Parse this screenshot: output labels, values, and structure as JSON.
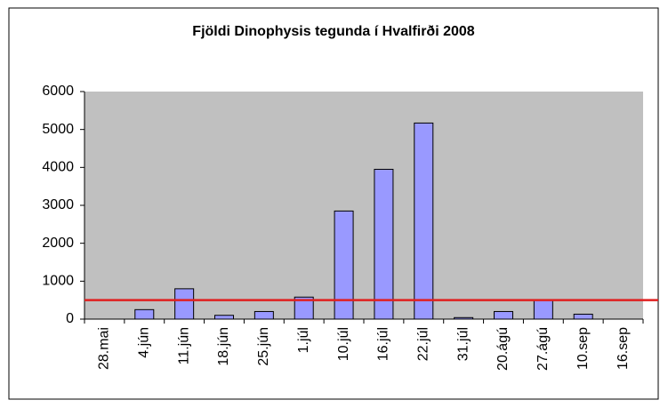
{
  "chart_data": {
    "type": "bar",
    "title": "Fjöldi Dinophysis tegunda í Hvalfirði 2008",
    "categories": [
      "28.mai",
      "4.jún",
      "11.jún",
      "18.jún",
      "25.jún",
      "1.júl",
      "10.júl",
      "16.júl",
      "22.júl",
      "31.júl",
      "20.ágú",
      "27.ágú",
      "10.sep",
      "16.sep"
    ],
    "values": [
      0,
      250,
      800,
      100,
      200,
      580,
      2850,
      3950,
      5170,
      40,
      200,
      500,
      130,
      0
    ],
    "color": "#9999ff",
    "ylim": [
      0,
      6000
    ],
    "yticks": [
      0,
      1000,
      2000,
      3000,
      4000,
      5000,
      6000
    ],
    "threshold": 500,
    "threshold_color": "#e02020"
  }
}
